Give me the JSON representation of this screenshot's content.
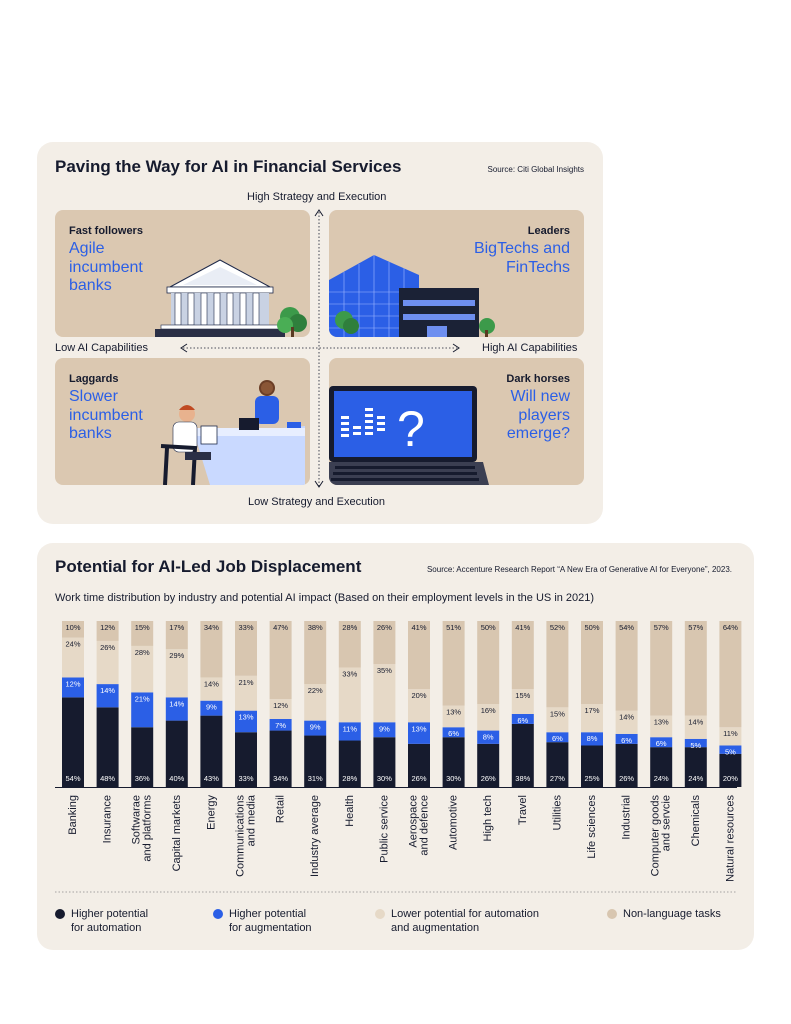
{
  "matrix": {
    "title": "Paving the Way for AI in Financial Services",
    "source": "Source: Citi Global Insights",
    "axis_top": "High Strategy and Execution",
    "axis_bottom": "Low Strategy and Execution",
    "axis_left": "Low AI Capabilities",
    "axis_right": "High AI Capabilities",
    "quadrants": [
      {
        "tag": "Fast followers",
        "lines": [
          "Agile",
          "incumbent",
          "banks"
        ]
      },
      {
        "tag": "Leaders",
        "lines": [
          "BigTechs and",
          "FinTechs"
        ]
      },
      {
        "tag": "Laggards",
        "lines": [
          "Slower",
          "incumbent",
          "banks"
        ]
      },
      {
        "tag": "Dark horses",
        "lines": [
          "Will new",
          "players",
          "emerge?"
        ]
      }
    ]
  },
  "displacement": {
    "title": "Potential for AI-Led Job Displacement",
    "source": "Source: Accenture Research Report “A New Era of Generative AI for Everyone”, 2023.",
    "subtitle": "Work time distribution by industry and potential AI impact (Based on their employment levels in the US in 2021)",
    "legend": [
      {
        "lines": [
          "Higher potential",
          "for automation"
        ],
        "color": "#161b2e"
      },
      {
        "lines": [
          "Higher potential",
          "for augmentation"
        ],
        "color": "#2b5fe6"
      },
      {
        "lines": [
          "Lower potential for automation",
          "and augmentation"
        ],
        "color": "#e6d9c7"
      },
      {
        "lines": [
          "Non-language tasks"
        ],
        "color": "#d8c6b0"
      }
    ]
  },
  "chart_data": {
    "type": "bar",
    "stacked": true,
    "unit": "%",
    "ylim": [
      0,
      100
    ],
    "categories": [
      "Banking",
      "Insurance",
      "Softwarae\nand platforms",
      "Capital markets",
      "Energy",
      "Communications\nand media",
      "Retail",
      "Industry average",
      "Health",
      "Public service",
      "Aerospace\nand defence",
      "Automotive",
      "High tech",
      "Travel",
      "Utilities",
      "Life sciences",
      "Industrial",
      "Computer goods\nand servcie",
      "Chemicals",
      "Natural resources"
    ],
    "series": [
      {
        "name": "Higher potential for automation",
        "color": "#161b2e",
        "values": [
          54,
          48,
          36,
          40,
          43,
          33,
          34,
          31,
          28,
          30,
          26,
          30,
          26,
          38,
          27,
          25,
          26,
          24,
          24,
          20
        ]
      },
      {
        "name": "Higher potential for augmentation",
        "color": "#2b5fe6",
        "values": [
          12,
          14,
          21,
          14,
          9,
          13,
          7,
          9,
          11,
          9,
          13,
          6,
          8,
          6,
          6,
          8,
          6,
          6,
          5,
          5
        ]
      },
      {
        "name": "Lower potential for automation and augmentation",
        "color": "#e6d9c7",
        "values": [
          24,
          26,
          28,
          29,
          14,
          21,
          12,
          22,
          33,
          35,
          20,
          13,
          16,
          15,
          15,
          17,
          14,
          13,
          14,
          11
        ]
      },
      {
        "name": "Non-language tasks",
        "color": "#d8c6b0",
        "values": [
          10,
          12,
          15,
          17,
          34,
          33,
          47,
          38,
          28,
          26,
          41,
          51,
          50,
          41,
          52,
          50,
          54,
          57,
          57,
          64
        ]
      }
    ]
  }
}
